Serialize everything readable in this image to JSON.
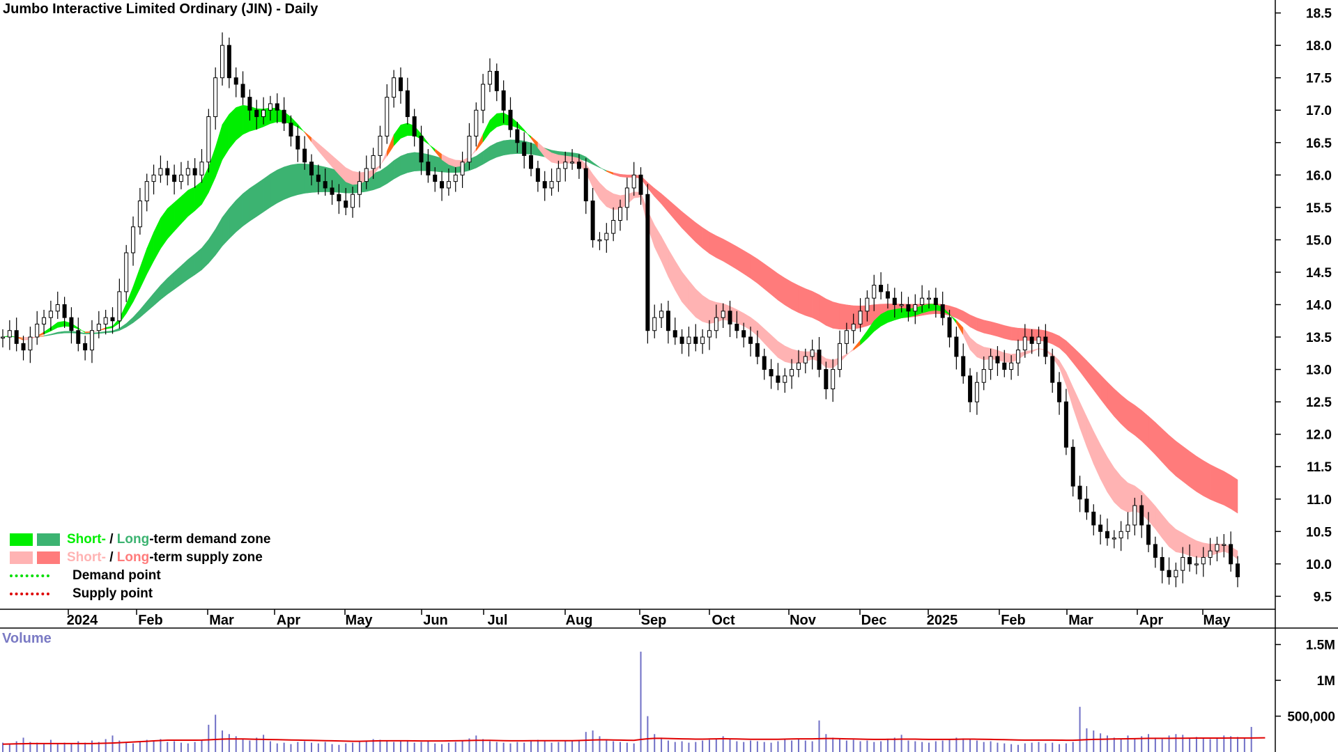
{
  "title": "Jumbo Interactive Limited Ordinary (JIN) - Daily",
  "legend": {
    "demand_label_short": "Short-",
    "demand_label_sep": " / ",
    "demand_label_long": "Long",
    "demand_label_rest": "-term demand zone",
    "supply_label_short": "Short-",
    "supply_label_sep": " / ",
    "supply_label_long": "Long",
    "supply_label_rest": "-term supply zone",
    "demand_point": "Demand point",
    "supply_point": "Supply point"
  },
  "volume_label": "Volume",
  "colors": {
    "short_demand": "#00ee00",
    "long_demand": "#3cb371",
    "short_supply": "#ffb3b3",
    "long_supply": "#ff7b7b",
    "transition": "#ff6a1a",
    "candle": "#000000",
    "volume_bar": "#6f6fc6",
    "volume_avg": "#e00000",
    "demand_point": "#00dd00",
    "supply_point": "#dd0000"
  },
  "chart_data": [
    {
      "type": "candlestick",
      "title": "Jumbo Interactive Limited Ordinary (JIN) - Daily",
      "ylim": [
        9.3,
        18.7
      ],
      "yticks": [
        "9.5",
        "10.0",
        "10.5",
        "11.0",
        "11.5",
        "12.0",
        "12.5",
        "13.0",
        "13.5",
        "14.0",
        "14.5",
        "15.0",
        "15.5",
        "16.0",
        "16.5",
        "17.0",
        "17.5",
        "18.0",
        "18.5"
      ],
      "xticks": [
        "2024",
        "Feb",
        "Mar",
        "Apr",
        "May",
        "Jun",
        "Jul",
        "Aug",
        "Sep",
        "Oct",
        "Nov",
        "Dec",
        "2025",
        "Feb",
        "Mar",
        "Apr",
        "May"
      ],
      "grid": false,
      "legend_position": "bottom-left",
      "close": [
        13.5,
        13.6,
        13.4,
        13.3,
        13.5,
        13.7,
        13.8,
        13.9,
        14.0,
        13.8,
        13.6,
        13.4,
        13.3,
        13.6,
        13.7,
        13.8,
        13.75,
        14.2,
        14.8,
        15.2,
        15.6,
        15.9,
        16.0,
        16.1,
        16.0,
        15.9,
        16.0,
        16.1,
        16.0,
        16.2,
        16.9,
        17.5,
        18.0,
        17.5,
        17.4,
        17.2,
        17.0,
        16.9,
        17.0,
        17.1,
        17.0,
        16.8,
        16.6,
        16.4,
        16.2,
        16.0,
        15.9,
        15.8,
        15.7,
        15.6,
        15.5,
        15.7,
        15.9,
        16.1,
        16.3,
        16.6,
        17.2,
        17.5,
        17.3,
        16.9,
        16.6,
        16.2,
        16.0,
        15.9,
        15.8,
        15.9,
        16.0,
        16.2,
        16.6,
        17.0,
        17.4,
        17.6,
        17.3,
        17.0,
        16.7,
        16.5,
        16.3,
        16.1,
        15.9,
        15.8,
        15.9,
        16.1,
        16.2,
        16.2,
        16.1,
        15.6,
        15.0,
        15.0,
        15.1,
        15.3,
        15.5,
        15.8,
        16.0,
        15.7,
        13.6,
        13.8,
        13.9,
        13.6,
        13.5,
        13.4,
        13.5,
        13.4,
        13.5,
        13.6,
        13.8,
        13.9,
        13.7,
        13.6,
        13.5,
        13.4,
        13.2,
        13.0,
        12.9,
        12.8,
        12.9,
        13.0,
        13.1,
        13.2,
        13.3,
        13.0,
        12.7,
        13.0,
        13.4,
        13.6,
        13.7,
        13.9,
        14.1,
        14.3,
        14.2,
        14.1,
        14.0,
        14.0,
        13.9,
        14.0,
        14.1,
        14.1,
        14.0,
        13.8,
        13.5,
        13.2,
        12.9,
        12.5,
        12.8,
        13.0,
        13.2,
        13.1,
        13.0,
        13.1,
        13.3,
        13.5,
        13.4,
        13.5,
        13.2,
        12.8,
        12.5,
        11.8,
        11.2,
        11.0,
        10.8,
        10.6,
        10.5,
        10.4,
        10.4,
        10.5,
        10.6,
        10.9,
        10.6,
        10.3,
        10.1,
        9.9,
        9.8,
        9.9,
        10.1,
        10.0,
        10.0,
        10.1,
        10.2,
        10.3,
        10.3,
        10.0,
        9.8
      ],
      "volume": {
        "yticks": [
          "500,000",
          "1M",
          "1.5M"
        ],
        "ylim": [
          0,
          1700000
        ],
        "values": [
          130000,
          120000,
          150000,
          200000,
          140000,
          130000,
          110000,
          170000,
          120000,
          130000,
          120000,
          150000,
          130000,
          160000,
          140000,
          180000,
          230000,
          160000,
          140000,
          120000,
          150000,
          170000,
          160000,
          180000,
          140000,
          150000,
          130000,
          120000,
          140000,
          160000,
          380000,
          520000,
          300000,
          250000,
          220000,
          180000,
          160000,
          200000,
          240000,
          150000,
          120000,
          130000,
          110000,
          140000,
          150000,
          130000,
          120000,
          140000,
          110000,
          100000,
          120000,
          130000,
          140000,
          160000,
          180000,
          170000,
          150000,
          140000,
          160000,
          150000,
          130000,
          140000,
          150000,
          120000,
          110000,
          130000,
          140000,
          160000,
          190000,
          230000,
          180000,
          150000,
          140000,
          130000,
          120000,
          140000,
          130000,
          150000,
          170000,
          150000,
          130000,
          140000,
          160000,
          150000,
          160000,
          280000,
          300000,
          220000,
          160000,
          150000,
          140000,
          130000,
          120000,
          1400000,
          500000,
          250000,
          200000,
          160000,
          140000,
          150000,
          130000,
          140000,
          160000,
          170000,
          180000,
          220000,
          180000,
          150000,
          140000,
          160000,
          150000,
          140000,
          130000,
          150000,
          170000,
          160000,
          180000,
          160000,
          150000,
          440000,
          250000,
          200000,
          180000,
          160000,
          170000,
          150000,
          160000,
          140000,
          150000,
          180000,
          200000,
          240000,
          160000,
          150000,
          140000,
          130000,
          150000,
          160000,
          180000,
          200000,
          190000,
          170000,
          160000,
          140000,
          150000,
          130000,
          120000,
          110000,
          100000,
          120000,
          130000,
          140000,
          120000,
          130000,
          110000,
          120000,
          140000,
          630000,
          330000,
          300000,
          260000,
          230000,
          200000,
          180000,
          230000,
          190000,
          220000,
          250000,
          200000,
          180000,
          230000,
          250000,
          240000,
          200000,
          210000,
          190000,
          180000,
          200000,
          230000,
          220000,
          210000,
          190000,
          350000
        ],
        "average": [
          110000,
          112000,
          114000,
          116000,
          118000,
          118000,
          118000,
          118000,
          118000,
          118000,
          118000,
          118000,
          118000,
          118000,
          120000,
          122000,
          125000,
          130000,
          135000,
          140000,
          145000,
          150000,
          155000,
          160000,
          165000,
          165000,
          165000,
          165000,
          165000,
          166000,
          170000,
          175000,
          180000,
          182000,
          182000,
          182000,
          180000,
          178000,
          176000,
          174000,
          172000,
          170000,
          168000,
          166000,
          164000,
          162000,
          160000,
          158000,
          156000,
          154000,
          152000,
          150000,
          150000,
          152000,
          154000,
          156000,
          156000,
          156000,
          156000,
          156000,
          155000,
          154000,
          154000,
          154000,
          154000,
          155000,
          156000,
          158000,
          160000,
          162000,
          162000,
          162000,
          160000,
          158000,
          156000,
          156000,
          156000,
          157000,
          158000,
          158000,
          158000,
          158000,
          158000,
          158000,
          160000,
          164000,
          168000,
          170000,
          170000,
          168000,
          166000,
          164000,
          162000,
          175000,
          185000,
          190000,
          190000,
          188000,
          186000,
          184000,
          182000,
          180000,
          180000,
          182000,
          184000,
          186000,
          184000,
          182000,
          180000,
          178000,
          178000,
          178000,
          178000,
          178000,
          180000,
          182000,
          184000,
          184000,
          184000,
          186000,
          188000,
          188000,
          186000,
          184000,
          182000,
          180000,
          178000,
          176000,
          176000,
          177000,
          178000,
          180000,
          180000,
          180000,
          178000,
          176000,
          176000,
          176000,
          176000,
          178000,
          180000,
          180000,
          179000,
          178000,
          176000,
          174000,
          172000,
          170000,
          168000,
          166000,
          166000,
          166000,
          166000,
          166000,
          165000,
          164000,
          164000,
          168000,
          172000,
          176000,
          178000,
          180000,
          182000,
          184000,
          185000,
          186000,
          188000,
          190000,
          190000,
          190000,
          190000,
          191000,
          192000,
          193000,
          194000,
          194000,
          194000,
          194000,
          194000,
          195000,
          195000,
          195000,
          195000,
          196000,
          198000
        ]
      },
      "annotations": [
        "Short-term demand zone",
        "Long-term demand zone",
        "Short-term supply zone",
        "Long-term supply zone",
        "Demand point",
        "Supply point"
      ]
    }
  ]
}
